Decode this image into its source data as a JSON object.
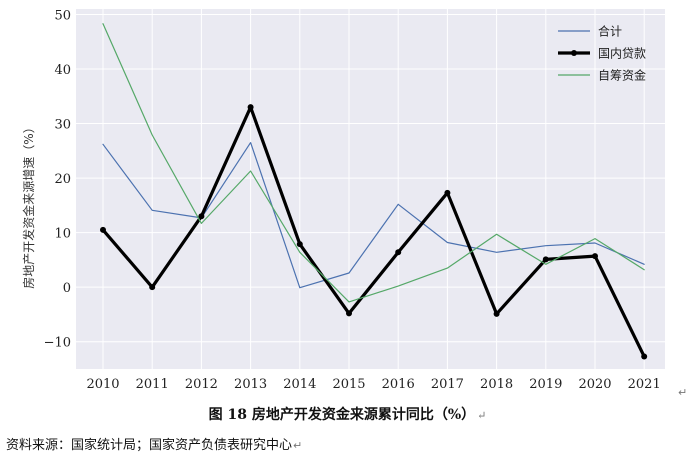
{
  "chart_data": {
    "type": "line",
    "categories": [
      "2010",
      "2011",
      "2012",
      "2013",
      "2014",
      "2015",
      "2016",
      "2017",
      "2018",
      "2019",
      "2020",
      "2021"
    ],
    "ylabel": "房地产开发资金来源增速（%）",
    "xlabel": "",
    "ylim": [
      -15,
      51
    ],
    "yticks": [
      -10,
      0,
      10,
      20,
      30,
      40,
      50
    ],
    "ytick_labels": [
      "−10",
      "0",
      "10",
      "20",
      "30",
      "40",
      "50"
    ],
    "grid": true,
    "legend_position": "top-right",
    "series": [
      {
        "name": "合计",
        "color": "#4c72b0",
        "width": 1.2,
        "marker": false,
        "values": [
          26.2,
          14.1,
          12.7,
          26.5,
          -0.1,
          2.6,
          15.2,
          8.2,
          6.4,
          7.6,
          8.1,
          4.2
        ]
      },
      {
        "name": "国内贷款",
        "color": "#000000",
        "width": 3.2,
        "marker": true,
        "values": [
          10.5,
          0.0,
          13.0,
          33.0,
          7.9,
          -4.8,
          6.4,
          17.3,
          -4.9,
          5.1,
          5.7,
          -12.7
        ]
      },
      {
        "name": "自筹资金",
        "color": "#55a868",
        "width": 1.2,
        "marker": false,
        "values": [
          48.3,
          27.9,
          11.7,
          21.3,
          6.4,
          -2.7,
          0.2,
          3.5,
          9.7,
          4.2,
          8.9,
          3.2
        ]
      }
    ]
  },
  "caption": {
    "text": "图 18  房地产开发资金来源累计同比（%）",
    "mark": "↵"
  },
  "source": {
    "text": "资料来源：国家统计局；国家资产负债表研究中心",
    "mark": "↵"
  },
  "x_tail_mark": "↵"
}
